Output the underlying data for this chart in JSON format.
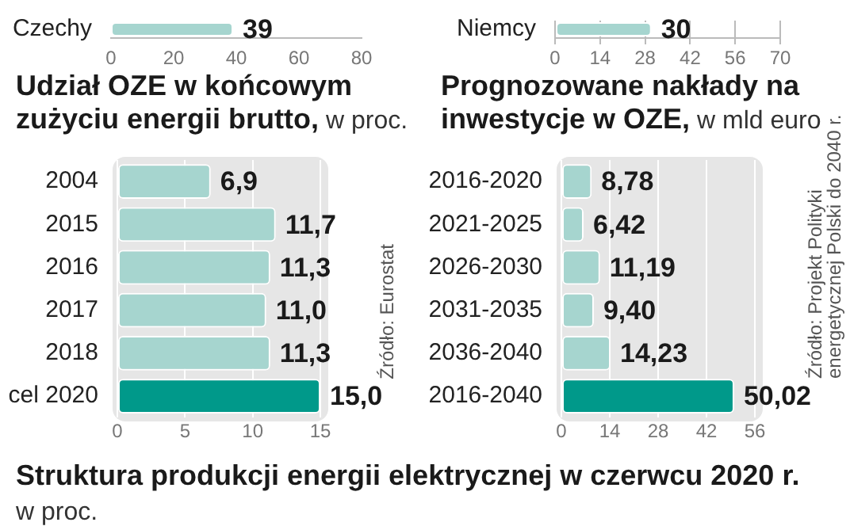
{
  "chart_data": [
    {
      "type": "bar",
      "orientation": "horizontal",
      "categories": [
        "Czechy"
      ],
      "values": [
        39
      ],
      "colors": [
        "#a6d5cf"
      ],
      "value_labels": [
        "39"
      ],
      "xlim": [
        0,
        80
      ],
      "xticks": [
        0,
        20,
        40,
        60,
        80
      ]
    },
    {
      "type": "bar",
      "orientation": "horizontal",
      "categories": [
        "Niemcy"
      ],
      "values": [
        30
      ],
      "colors": [
        "#a6d5cf"
      ],
      "value_labels": [
        "30"
      ],
      "xlim": [
        0,
        70
      ],
      "xticks": [
        0,
        14,
        28,
        42,
        56,
        70
      ],
      "grid": "x"
    },
    {
      "type": "bar",
      "orientation": "horizontal",
      "title": "Udział OZE w końcowym zużyciu energii brutto,",
      "subtitle": "w proc.",
      "categories": [
        "2004",
        "2015",
        "2016",
        "2017",
        "2018",
        "cel 2020"
      ],
      "values": [
        6.9,
        11.7,
        11.3,
        11.0,
        11.3,
        15.0
      ],
      "colors": [
        "#a6d5cf",
        "#a6d5cf",
        "#a6d5cf",
        "#a6d5cf",
        "#a6d5cf",
        "#00998a"
      ],
      "value_labels": [
        "6,9",
        "11,7",
        "11,3",
        "11,0",
        "11,3",
        "15,0"
      ],
      "xlim": [
        0,
        15
      ],
      "xticks": [
        0,
        5,
        10,
        15
      ],
      "grid": "x",
      "annotations": [
        "Źródło: Eurostat"
      ]
    },
    {
      "type": "bar",
      "orientation": "horizontal",
      "title": "Prognozowane nakłady na inwestycje w OZE,",
      "subtitle": "w mld euro",
      "categories": [
        "2016-2020",
        "2021-2025",
        "2026-2030",
        "2031-2035",
        "2036-2040",
        "2016-2040"
      ],
      "values": [
        8.78,
        6.42,
        11.19,
        9.4,
        14.23,
        50.02
      ],
      "colors": [
        "#a6d5cf",
        "#a6d5cf",
        "#a6d5cf",
        "#a6d5cf",
        "#a6d5cf",
        "#00998a"
      ],
      "value_labels": [
        "8,78",
        "6,42",
        "11,19",
        "9,40",
        "14,23",
        "50,02"
      ],
      "xlim": [
        0,
        56
      ],
      "xticks": [
        0,
        14,
        28,
        42,
        56
      ],
      "grid": "x",
      "annotations": [
        "Źródło: Projekt Polityki energetycznej Polski do 2040 r."
      ]
    },
    {
      "type": "other",
      "title": "Struktura produkcji energii elektrycznej w czerwcu 2020 r.",
      "subtitle": "w proc."
    }
  ]
}
